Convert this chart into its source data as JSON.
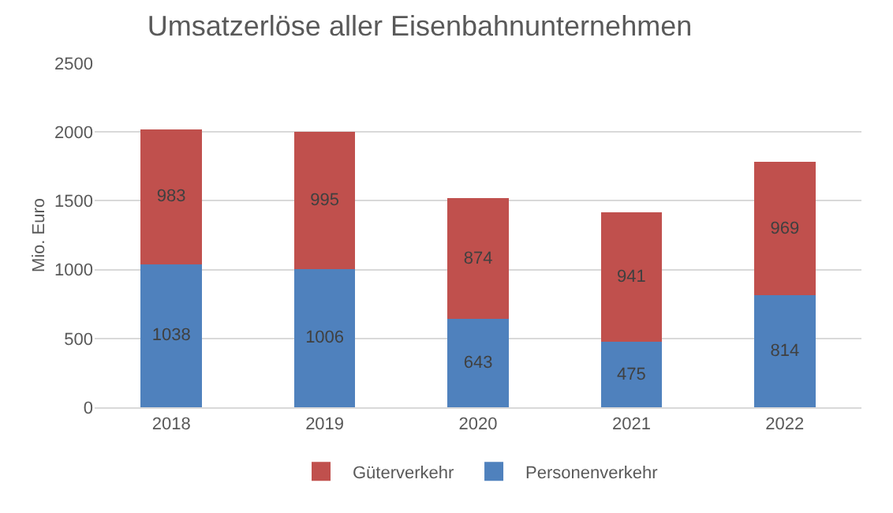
{
  "chart_data": {
    "type": "bar",
    "title": "Umsatzerlöse aller Eisenbahnunternehmen",
    "ylabel": "Mio. Euro",
    "categories": [
      "2018",
      "2019",
      "2020",
      "2021",
      "2022"
    ],
    "series": [
      {
        "name": "Personenverkehr",
        "color": "#4f81bd",
        "values": [
          1038,
          1006,
          643,
          475,
          814
        ]
      },
      {
        "name": "Güterverkehr",
        "color": "#c0504d",
        "values": [
          983,
          995,
          874,
          941,
          969
        ]
      }
    ],
    "stacked": true,
    "data_labels": true,
    "ylim": [
      0,
      2500
    ],
    "yticks": [
      0,
      500,
      1000,
      1500,
      2000,
      2500
    ],
    "grid": "y",
    "legend": "bottom"
  }
}
